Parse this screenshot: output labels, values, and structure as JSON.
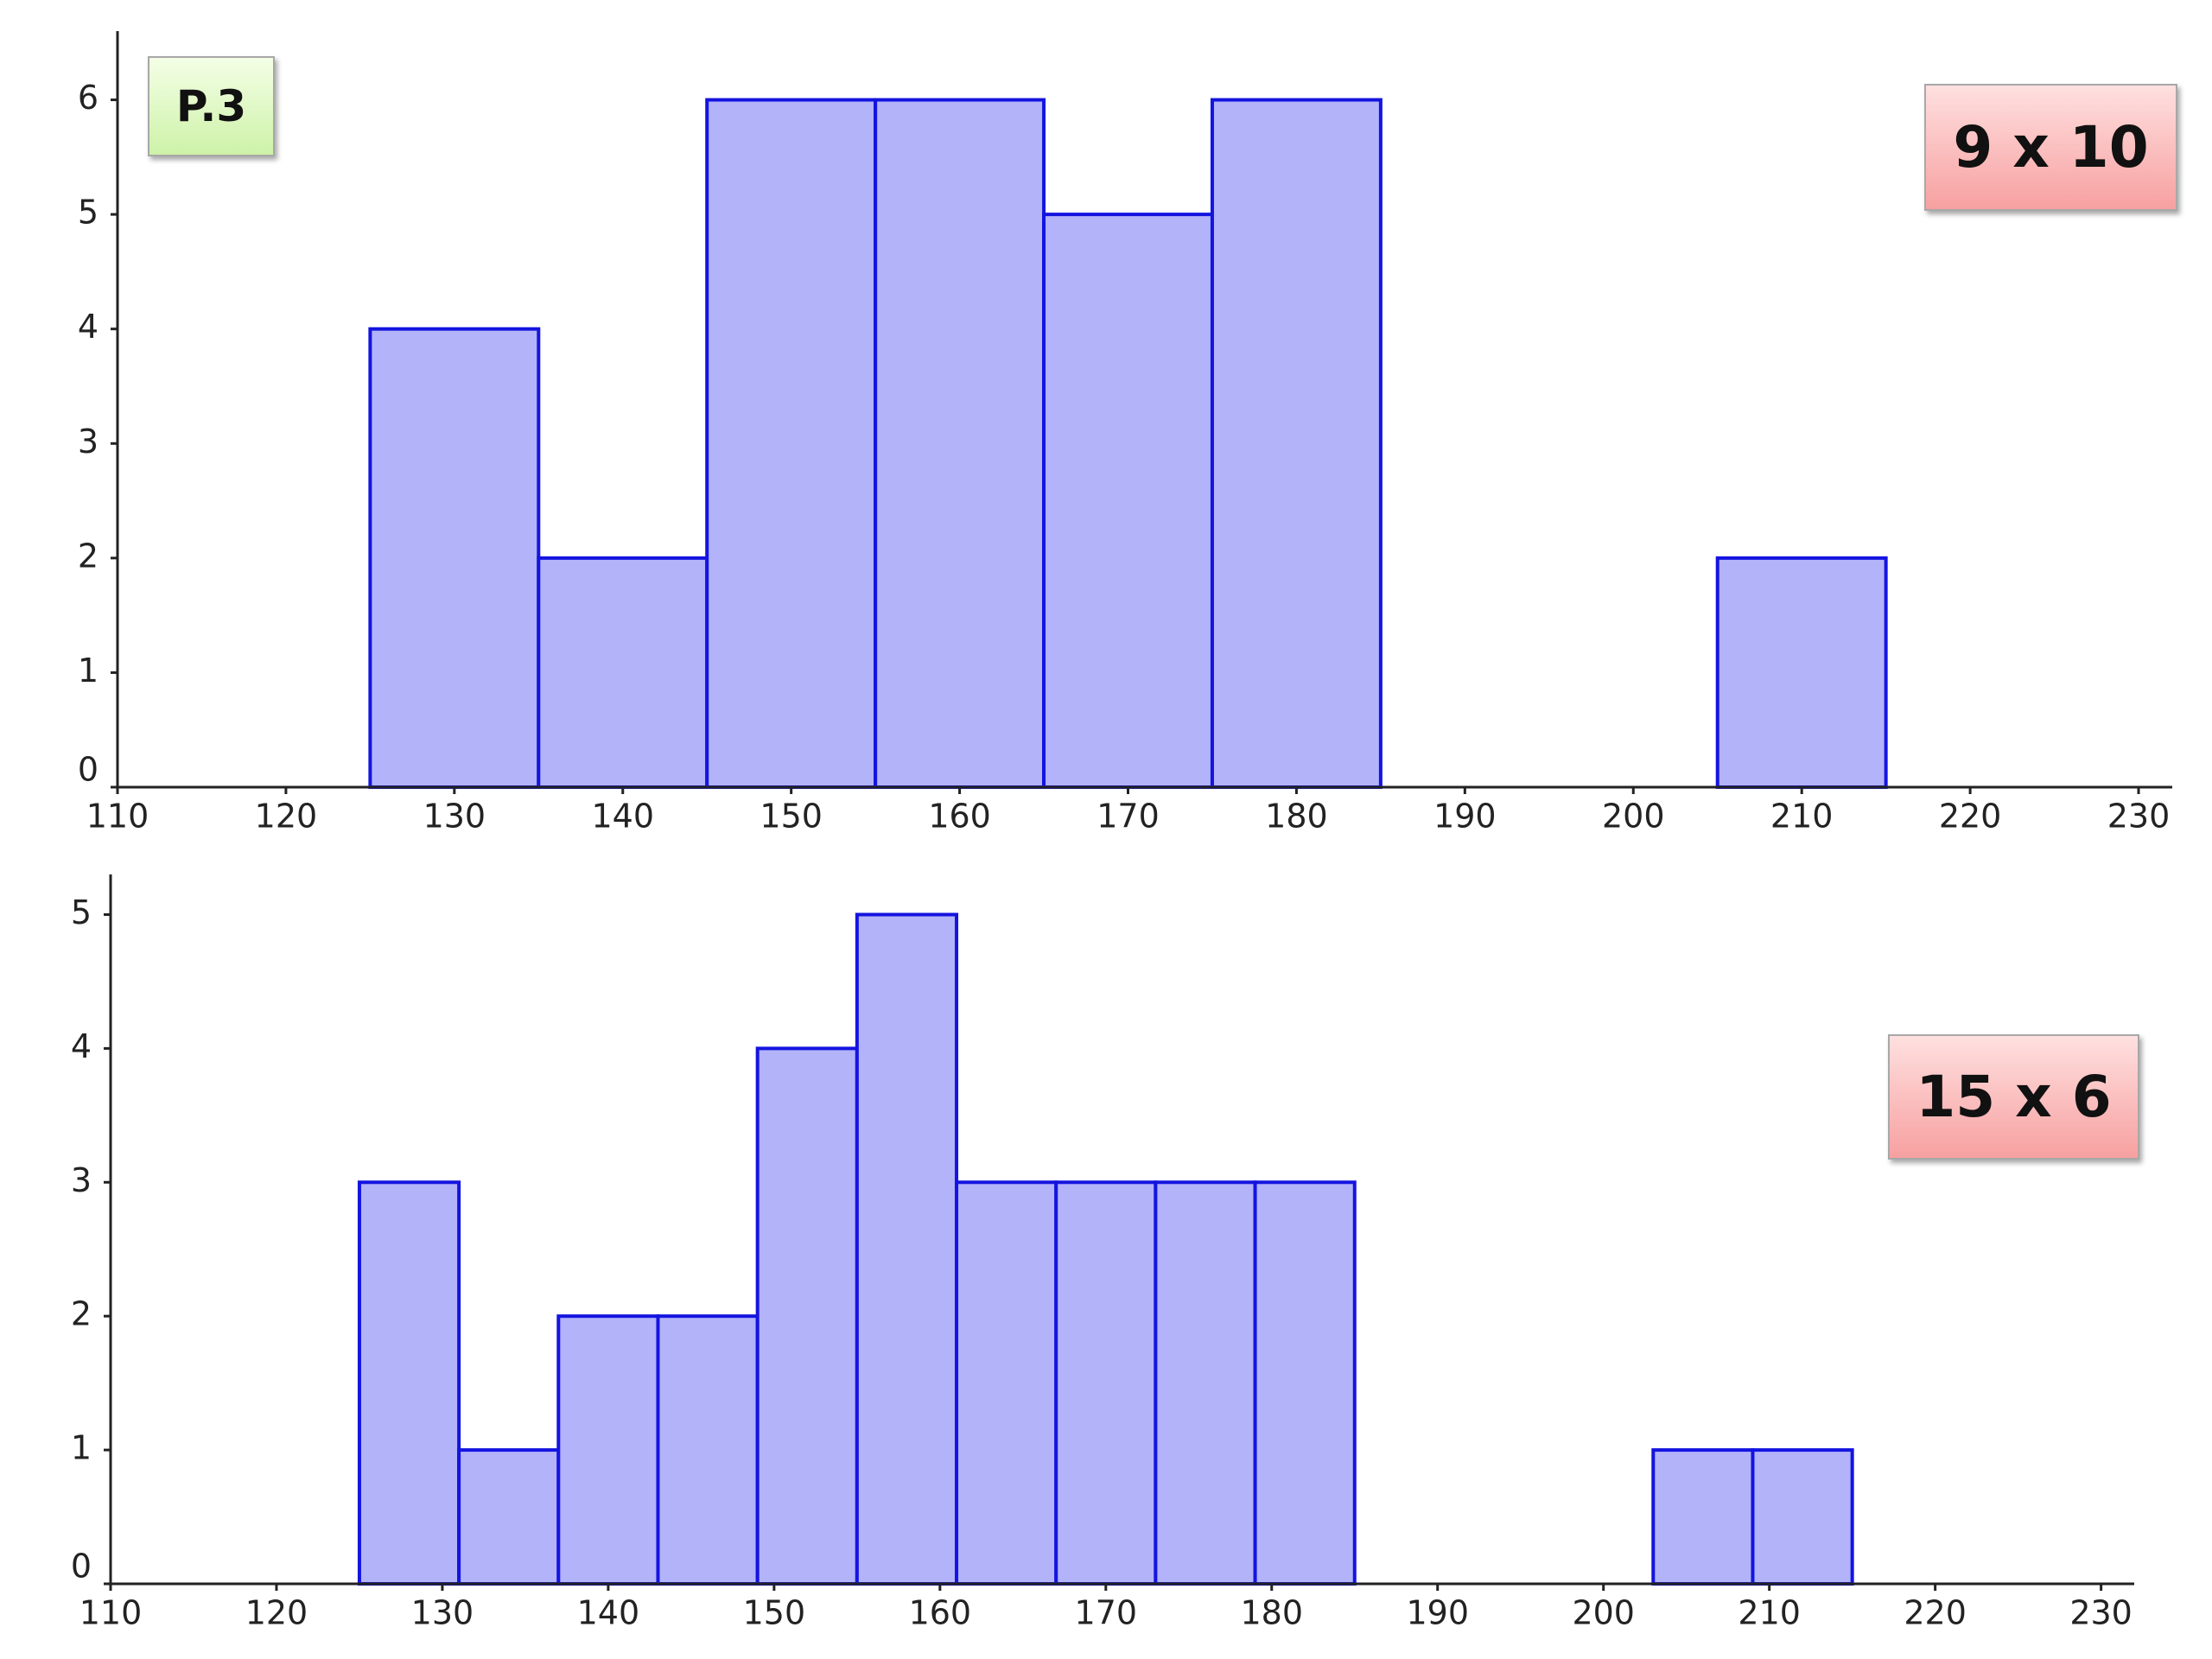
{
  "chart_data": [
    {
      "type": "histogram",
      "annotations": [
        "P.3",
        "9 x 10"
      ],
      "bins": [
        125,
        135,
        145,
        155,
        165,
        175,
        185,
        195,
        205,
        215
      ],
      "values": [
        4,
        2,
        6,
        6,
        5,
        6,
        0,
        0,
        2
      ],
      "color": "#b3b3fa",
      "edge_color": "#1414e0",
      "xlim": [
        110,
        232
      ],
      "xticks": [
        110,
        120,
        130,
        140,
        150,
        160,
        170,
        180,
        190,
        200,
        210,
        220,
        230
      ],
      "ylim": [
        0,
        6.6
      ],
      "yticks": [
        0,
        1,
        2,
        3,
        4,
        5,
        6
      ]
    },
    {
      "type": "histogram",
      "annotations": [
        "15 x 6"
      ],
      "bins": [
        125,
        131,
        137,
        143,
        149,
        155,
        161,
        167,
        173,
        179,
        185,
        191,
        197,
        203,
        209,
        215
      ],
      "values": [
        3,
        1,
        2,
        2,
        4,
        5,
        3,
        3,
        3,
        3,
        0,
        0,
        0,
        1,
        1
      ],
      "color": "#b3b3fa",
      "edge_color": "#1414e0",
      "xlim": [
        110,
        232
      ],
      "xticks": [
        110,
        120,
        130,
        140,
        150,
        160,
        170,
        180,
        190,
        200,
        210,
        220,
        230
      ],
      "ylim": [
        0,
        5.3
      ],
      "yticks": [
        0,
        1,
        2,
        3,
        4,
        5
      ]
    }
  ]
}
